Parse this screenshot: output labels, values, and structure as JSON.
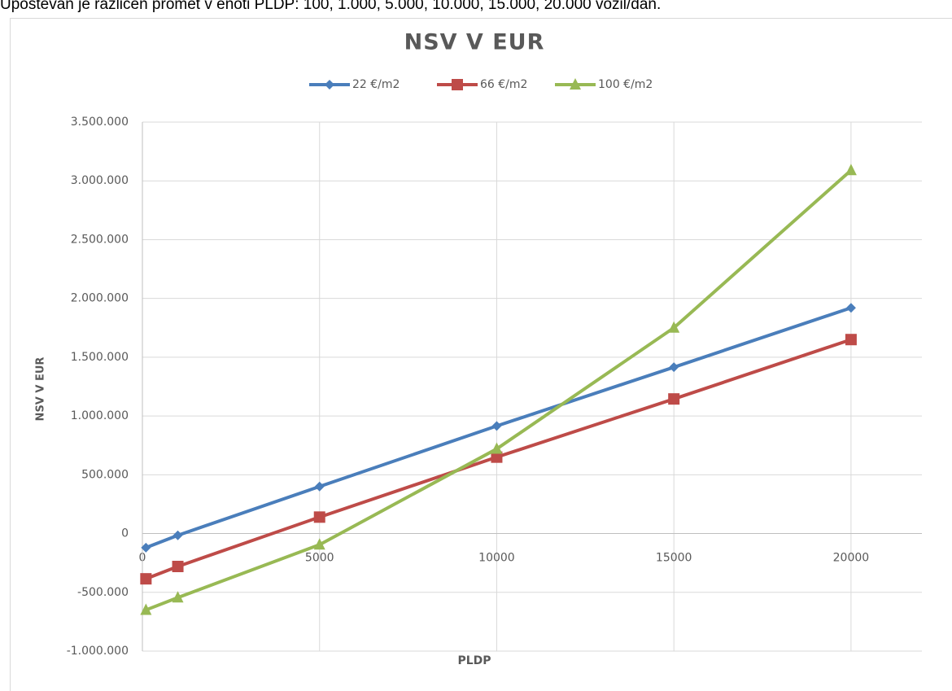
{
  "caption": "Upoštevan je različen promet v enoti PLDP: 100, 1.000, 5.000, 10.000, 15.000, 20.000 vozil/dan.",
  "chart_data": {
    "type": "line",
    "title": "NSV V EUR",
    "x_label": "PLDP",
    "y_label": "NSV V EUR",
    "x": [
      100,
      1000,
      5000,
      10000,
      15000,
      20000
    ],
    "series": [
      {
        "name": "22 €/m2",
        "color": "#4a7ebb",
        "marker": "diamond",
        "values": [
          -120000,
          -15000,
          400000,
          915000,
          1415000,
          1920000
        ]
      },
      {
        "name": "66 €/m2",
        "color": "#be4b48",
        "marker": "square",
        "values": [
          -385000,
          -280000,
          140000,
          650000,
          1145000,
          1650000
        ]
      },
      {
        "name": "100 €/m2",
        "color": "#98b954",
        "marker": "triangle",
        "values": [
          -650000,
          -545000,
          -95000,
          720000,
          1750000,
          3090000
        ]
      }
    ],
    "xlim": [
      0,
      22000
    ],
    "xticks": [
      0,
      5000,
      10000,
      15000,
      20000
    ],
    "ylim": [
      -1000000,
      3500000
    ],
    "yticks": [
      {
        "value": -1000000,
        "label": "-1.000.000"
      },
      {
        "value": -500000,
        "label": "-500.000"
      },
      0,
      {
        "value": 500000,
        "label": "500.000"
      },
      {
        "value": 1000000,
        "label": "1.000.000"
      },
      {
        "value": 1500000,
        "label": "1.500.000"
      },
      {
        "value": 2000000,
        "label": "2.000.000"
      },
      {
        "value": 2500000,
        "label": "2.500.000"
      },
      {
        "value": 3000000,
        "label": "3.000.000"
      },
      {
        "value": 3500000,
        "label": "3.500.000"
      }
    ],
    "grid": true,
    "legend": "top"
  }
}
